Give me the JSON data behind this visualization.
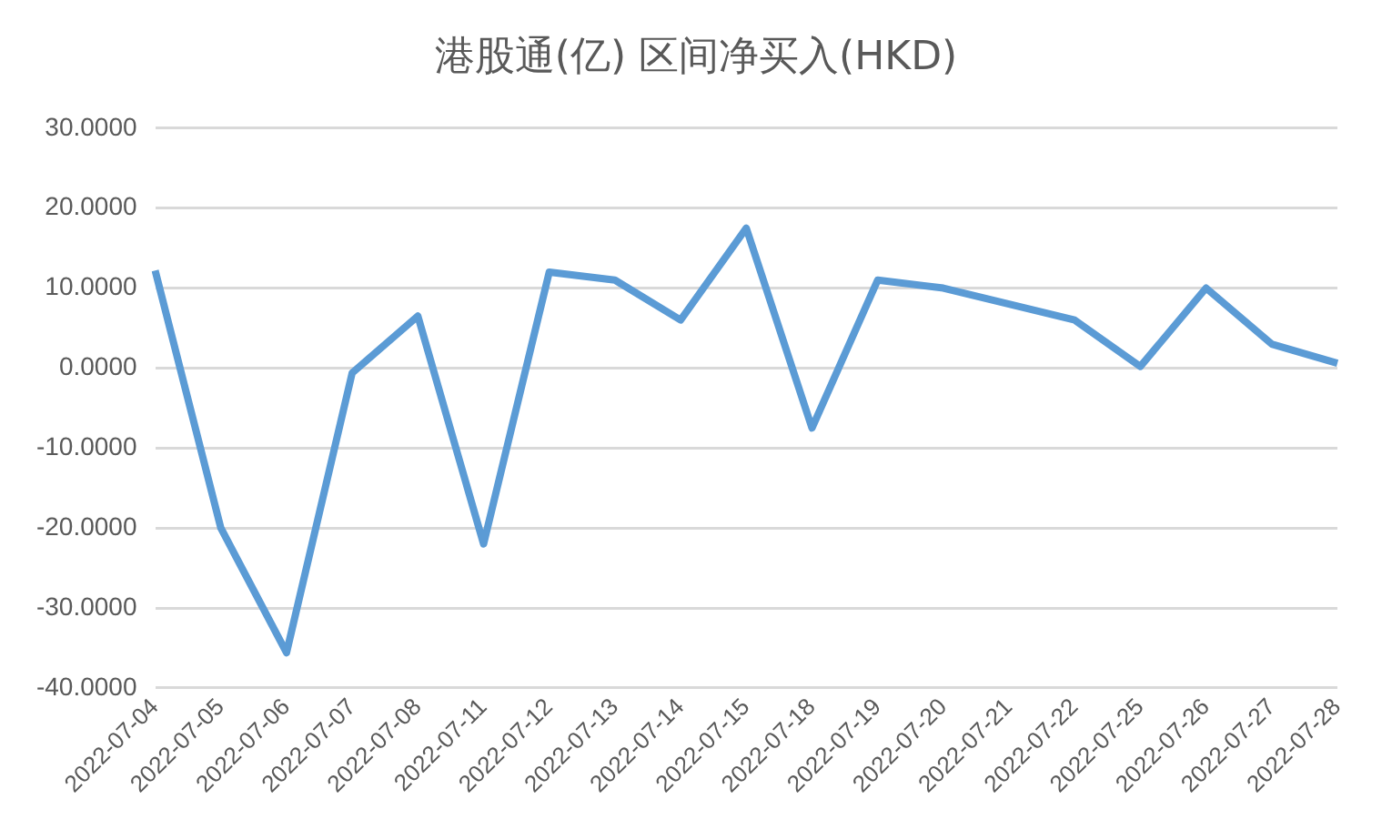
{
  "chart_data": {
    "type": "line",
    "title": "港股通(亿) 区间净买入(HKD)",
    "categories": [
      "2022-07-04",
      "2022-07-05",
      "2022-07-06",
      "2022-07-07",
      "2022-07-08",
      "2022-07-11",
      "2022-07-12",
      "2022-07-13",
      "2022-07-14",
      "2022-07-15",
      "2022-07-18",
      "2022-07-19",
      "2022-07-20",
      "2022-07-21",
      "2022-07-22",
      "2022-07-25",
      "2022-07-26",
      "2022-07-27",
      "2022-07-28"
    ],
    "series": [
      {
        "color": "#5b9bd5",
        "values": [
          12.2,
          -20,
          -35.6,
          -0.6,
          6.5,
          -22,
          12,
          11,
          6,
          17.5,
          -7.5,
          11,
          10,
          8,
          6,
          0.2,
          10,
          3,
          0.6
        ]
      }
    ],
    "ylim": [
      -40,
      30
    ],
    "yticks": [
      {
        "value": -40,
        "label": "-40.0000"
      },
      {
        "value": -30,
        "label": "-30.0000"
      },
      {
        "value": -20,
        "label": "-20.0000"
      },
      {
        "value": -10,
        "label": "-10.0000"
      },
      {
        "value": 0,
        "label": "0.0000"
      },
      {
        "value": 10,
        "label": "10.0000"
      },
      {
        "value": 20,
        "label": "20.0000"
      },
      {
        "value": 30,
        "label": "30.0000"
      }
    ],
    "grid": "y",
    "legend": false,
    "marker": "none",
    "line_style": "solid"
  }
}
